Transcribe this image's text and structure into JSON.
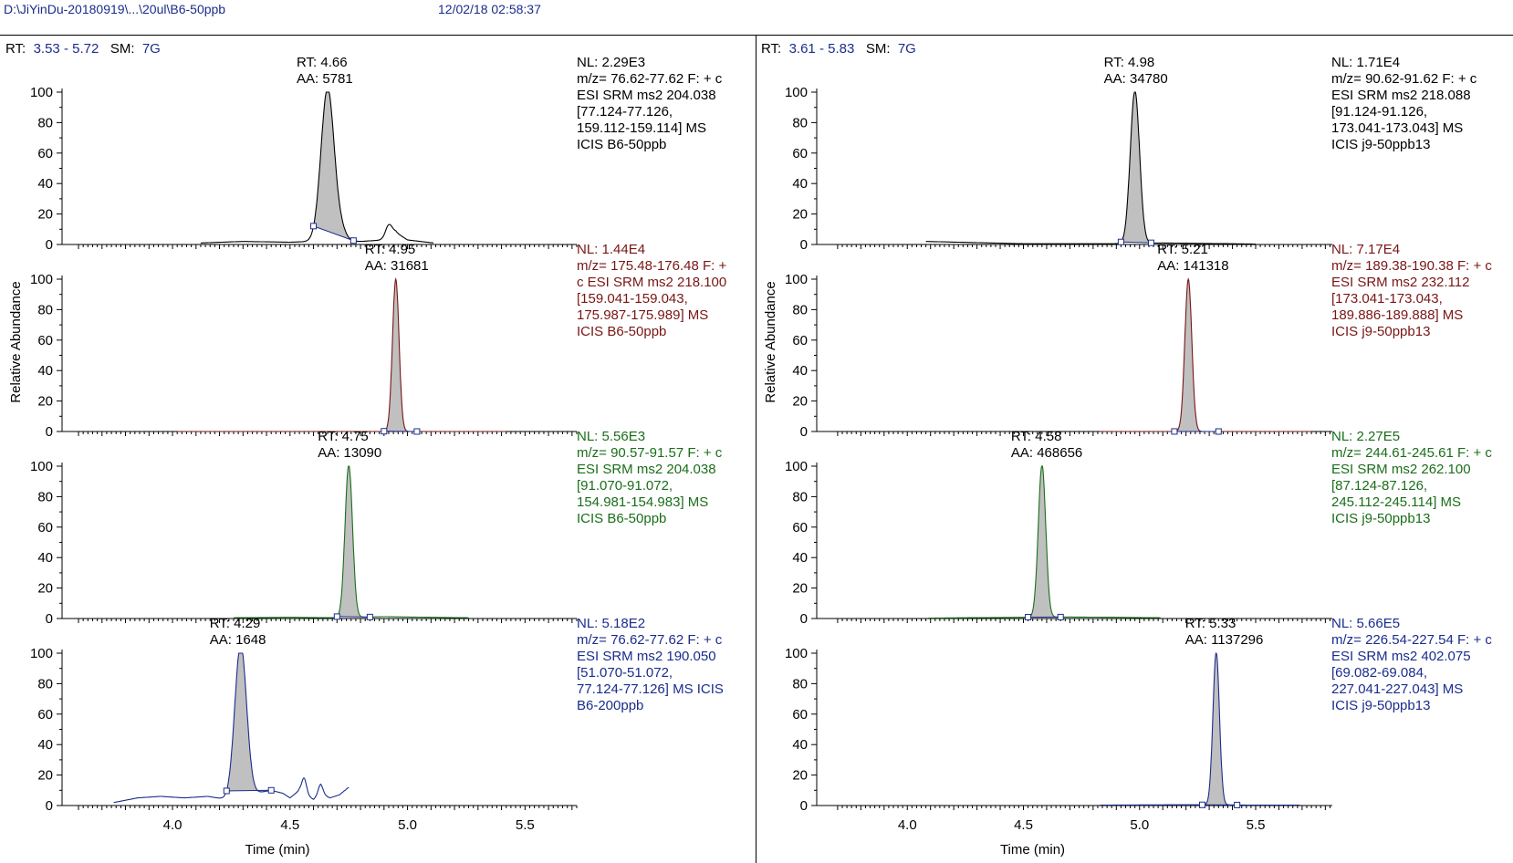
{
  "header": {
    "file_path": "D:\\JiYinDu-20180919\\...\\20ul\\B6-50ppb",
    "datetime": "12/02/18 02:58:37"
  },
  "panels": [
    {
      "rt_label": "RT:",
      "rt_range": "3.53 - 5.72",
      "sm_label": "SM:",
      "sm_value": "7G"
    },
    {
      "rt_label": "RT:",
      "rt_range": "3.61 - 5.83",
      "sm_label": "SM:",
      "sm_value": "7G"
    }
  ],
  "colors": {
    "axis": "#000000",
    "peak_fill": "#c0c0c0",
    "baseline_marker": "#1a2d8c",
    "trace_1": "#000000",
    "trace_2": "#7a1515",
    "trace_3": "#1a6e1a",
    "trace_4": "#1a2d8c"
  },
  "chart_data": [
    {
      "type": "line",
      "panel": "left",
      "xlabel": "Time (min)",
      "ylabel": "Relative Abundance",
      "xlim": [
        3.53,
        5.72
      ],
      "x_ticks": [
        "4.0",
        "4.5",
        "5.0",
        "5.5"
      ],
      "y_ticks": [
        "0",
        "20",
        "40",
        "60",
        "80",
        "100"
      ],
      "ylim": [
        0,
        100
      ],
      "traces": [
        {
          "color": "trace_1",
          "annotation": [
            "RT: 4.66",
            "AA: 5781"
          ],
          "info": [
            "NL: 2.29E3",
            "m/z= 76.62-77.62 F: + c",
            "ESI SRM ms2 204.038",
            "[77.124-77.126,",
            "159.112-159.114]  MS",
            "ICIS B6-50ppb"
          ],
          "peak": {
            "rt": 4.66,
            "height": 100,
            "width": 0.028,
            "start": 4.6,
            "end": 4.77
          },
          "baseline": {
            "x": [
              4.12,
              4.3,
              4.5,
              4.6,
              4.7,
              4.8,
              4.9,
              4.95,
              5.0,
              5.11
            ],
            "y": [
              1,
              2,
              1.5,
              2,
              3,
              2,
              3,
              8,
              3,
              1
            ]
          },
          "bumps": [
            {
              "x": 4.72,
              "h": 5,
              "w": 0.02
            },
            {
              "x": 4.92,
              "h": 8,
              "w": 0.015
            }
          ]
        },
        {
          "color": "trace_2",
          "annotation": [
            "RT: 4.95",
            "AA: 31681"
          ],
          "info": [
            "NL: 1.44E4",
            "m/z= 175.48-176.48 F: +",
            "c ESI SRM ms2 218.100",
            "[159.041-159.043,",
            "175.987-175.989]  MS",
            "ICIS B6-50ppb"
          ],
          "peak": {
            "rt": 4.95,
            "height": 100,
            "width": 0.014,
            "start": 4.9,
            "end": 5.04
          },
          "baseline": {
            "x": [
              4.02,
              5.42
            ],
            "y": [
              0,
              0
            ]
          },
          "bumps": []
        },
        {
          "color": "trace_3",
          "annotation": [
            "RT: 4.75",
            "AA: 13090"
          ],
          "info": [
            "NL: 5.56E3",
            "m/z= 90.57-91.57 F: + c",
            "ESI SRM ms2 204.038",
            "[91.070-91.072,",
            "154.981-154.983]  MS",
            "ICIS B6-50ppb"
          ],
          "peak": {
            "rt": 4.75,
            "height": 100,
            "width": 0.016,
            "start": 4.7,
            "end": 4.84
          },
          "baseline": {
            "x": [
              4.26,
              4.5,
              4.7,
              4.9,
              5.0,
              5.26
            ],
            "y": [
              0.5,
              0.8,
              0.5,
              1.2,
              1,
              0.5
            ]
          },
          "bumps": []
        },
        {
          "color": "trace_4",
          "annotation": [
            "RT: 4.29",
            "AA: 1648"
          ],
          "info": [
            "NL: 5.18E2",
            "m/z= 76.62-77.62 F: + c",
            "ESI SRM ms2 190.050",
            "[51.070-51.072,",
            "77.124-77.126]  MS  ICIS",
            "B6-200ppb"
          ],
          "peak": {
            "rt": 4.29,
            "height": 100,
            "width": 0.025,
            "start": 4.23,
            "end": 4.42
          },
          "baseline": {
            "x": [
              3.75,
              3.85,
              3.95,
              4.05,
              4.15,
              4.23,
              4.35,
              4.42,
              4.47,
              4.5,
              4.54,
              4.58,
              4.6,
              4.63,
              4.67,
              4.71,
              4.75
            ],
            "y": [
              2,
              5,
              6,
              5,
              6,
              4,
              8,
              10,
              8,
              5,
              10,
              6,
              4,
              8,
              5,
              7,
              12
            ]
          },
          "bumps": [
            {
              "x": 4.56,
              "h": 10,
              "w": 0.01
            },
            {
              "x": 4.63,
              "h": 6,
              "w": 0.01
            }
          ]
        }
      ]
    },
    {
      "type": "line",
      "panel": "right",
      "xlabel": "Time (min)",
      "ylabel": "Relative Abundance",
      "xlim": [
        3.61,
        5.83
      ],
      "x_ticks": [
        "4.0",
        "4.5",
        "5.0",
        "5.5"
      ],
      "y_ticks": [
        "0",
        "20",
        "40",
        "60",
        "80",
        "100"
      ],
      "ylim": [
        0,
        100
      ],
      "traces": [
        {
          "color": "trace_1",
          "annotation": [
            "RT: 4.98",
            "AA: 34780"
          ],
          "info": [
            "NL: 1.71E4",
            "m/z= 90.62-91.62 F: + c",
            "ESI SRM ms2 218.088",
            "[91.124-91.126,",
            "173.041-173.043]  MS",
            "ICIS j9-50ppb13"
          ],
          "peak": {
            "rt": 4.98,
            "height": 100,
            "width": 0.02,
            "start": 4.92,
            "end": 5.05
          },
          "baseline": {
            "x": [
              4.08,
              4.5,
              4.9,
              5.1,
              5.5
            ],
            "y": [
              2,
              0.5,
              0.5,
              1,
              0.3
            ]
          },
          "bumps": []
        },
        {
          "color": "trace_2",
          "annotation": [
            "RT: 5.21",
            "AA: 141318"
          ],
          "info": [
            "NL: 7.17E4",
            "m/z= 189.38-190.38 F: + c",
            "ESI SRM ms2 232.112",
            "[173.041-173.043,",
            "189.886-189.888]  MS",
            "ICIS j9-50ppb13"
          ],
          "peak": {
            "rt": 5.21,
            "height": 100,
            "width": 0.015,
            "start": 5.15,
            "end": 5.34
          },
          "baseline": {
            "x": [
              4.83,
              5.74
            ],
            "y": [
              0,
              0
            ]
          },
          "bumps": []
        },
        {
          "color": "trace_3",
          "annotation": [
            "RT: 4.58",
            "AA: 468656"
          ],
          "info": [
            "NL: 2.27E5",
            "m/z= 244.61-245.61 F: + c",
            "ESI SRM ms2 262.100",
            "[87.124-87.126,",
            "245.112-245.114]  MS",
            "ICIS j9-50ppb13"
          ],
          "peak": {
            "rt": 4.58,
            "height": 100,
            "width": 0.016,
            "start": 4.52,
            "end": 4.66
          },
          "baseline": {
            "x": [
              4.09,
              4.5,
              4.7,
              4.9,
              5.09
            ],
            "y": [
              0.3,
              0.8,
              1,
              0.8,
              0.5
            ]
          },
          "bumps": []
        },
        {
          "color": "trace_4",
          "annotation": [
            "RT: 5.33",
            "AA: 1137296"
          ],
          "info": [
            "NL: 5.66E5",
            "m/z= 226.54-227.54 F: + c",
            "ESI SRM ms2 402.075",
            "[69.082-69.084,",
            "227.041-227.043]  MS",
            "ICIS j9-50ppb13"
          ],
          "peak": {
            "rt": 5.33,
            "height": 100,
            "width": 0.014,
            "start": 5.27,
            "end": 5.42
          },
          "baseline": {
            "x": [
              4.83,
              5.2,
              5.5,
              5.69
            ],
            "y": [
              0.3,
              0.5,
              0.3,
              0.3
            ]
          },
          "bumps": []
        }
      ]
    }
  ]
}
